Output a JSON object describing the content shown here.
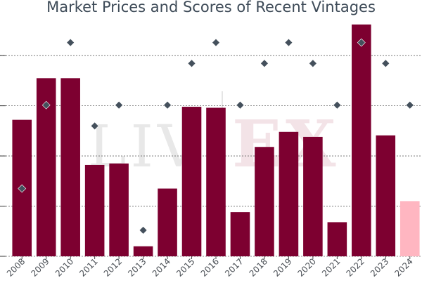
{
  "chart_data": {
    "type": "bar",
    "title": "Market Prices and Scores of Recent Vintages",
    "categories": [
      "2008",
      "2009",
      "2010",
      "2011",
      "2012",
      "2013",
      "2014",
      "2015",
      "2016",
      "2017",
      "2018",
      "2019",
      "2020",
      "2021",
      "2022",
      "2023",
      "2024"
    ],
    "series": [
      {
        "kind": "bar",
        "values": [
          372,
          455,
          455,
          282,
          285,
          120,
          235,
          398,
          396,
          188,
          318,
          348,
          338,
          168,
          562,
          341,
          210
        ],
        "colors": [
          "#7d0030",
          "#7d0030",
          "#7d0030",
          "#7d0030",
          "#7d0030",
          "#7d0030",
          "#7d0030",
          "#7d0030",
          "#7d0030",
          "#7d0030",
          "#7d0030",
          "#7d0030",
          "#7d0030",
          "#7d0030",
          "#7d0030",
          "#7d0030",
          "#ffb6c1"
        ]
      },
      {
        "kind": "scatter",
        "marker": "diamond",
        "color": "#44505c",
        "values": [
          93,
          97,
          100,
          96,
          97,
          91,
          97,
          99,
          100,
          97,
          99,
          100,
          99,
          97,
          100,
          99,
          97
        ]
      }
    ],
    "ylim": [
      100,
      580
    ],
    "score_ylim": [
      89.75,
      101.3
    ],
    "gridlines": [
      100,
      200,
      300,
      400,
      500
    ],
    "grid": true,
    "xlabel": "",
    "ylabel": "",
    "legend": "none",
    "watermark": "LIV-EX"
  }
}
